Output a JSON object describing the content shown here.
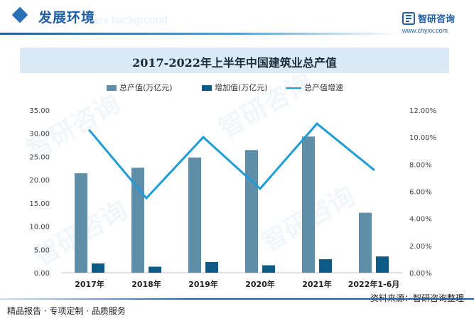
{
  "header": {
    "title": "发展环境",
    "ghost_text": "ent background"
  },
  "logo": {
    "name": "智研咨询",
    "url": "www.chyxx.com"
  },
  "chart_data": {
    "type": "bar",
    "title": "2017-2022年上半年中国建筑业总产值",
    "categories": [
      "2017年",
      "2018年",
      "2019年",
      "2020年",
      "2021年",
      "2022年1-6月"
    ],
    "series": [
      {
        "name": "总产值(万亿元)",
        "type": "bar",
        "axis": "left",
        "color": "#5f8fa8",
        "values": [
          21.4,
          22.6,
          24.8,
          26.4,
          29.3,
          12.9
        ]
      },
      {
        "name": "增加值(万亿元)",
        "type": "bar",
        "axis": "left",
        "color": "#0e5a86",
        "values": [
          2.0,
          1.3,
          2.3,
          1.6,
          2.9,
          3.5
        ]
      },
      {
        "name": "总产值增速",
        "type": "line",
        "axis": "right",
        "color": "#1e9cd7",
        "values": [
          10.5,
          5.5,
          10.0,
          6.2,
          11.0,
          7.6
        ]
      }
    ],
    "y_left": {
      "min": 0,
      "max": 35,
      "ticks": [
        "0.00",
        "5.00",
        "10.00",
        "15.00",
        "20.00",
        "25.00",
        "30.00",
        "35.00"
      ]
    },
    "y_right": {
      "min": 0,
      "max": 12,
      "ticks": [
        "0.00%",
        "2.00%",
        "4.00%",
        "6.00%",
        "8.00%",
        "10.00%",
        "12.00%"
      ]
    },
    "legend_position": "top",
    "grid": false
  },
  "footer": {
    "left": "精品报告 · 专项定制 · 品质服务",
    "source": "资料来源：智研咨询整理"
  }
}
